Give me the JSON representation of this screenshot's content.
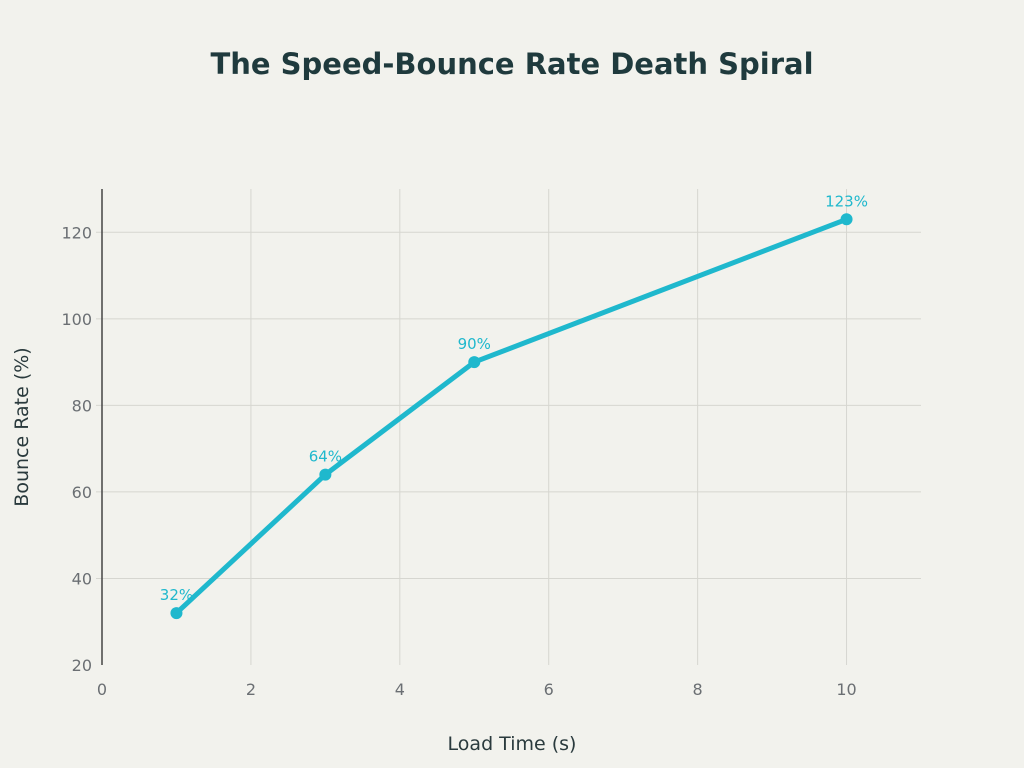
{
  "chart_data": {
    "type": "line",
    "title": "The Speed-Bounce Rate Death Spiral",
    "xlabel": "Load Time (s)",
    "ylabel": "Bounce Rate (%)",
    "xlim": [
      0,
      11
    ],
    "ylim": [
      20,
      130
    ],
    "xticks": [
      0,
      2,
      4,
      6,
      8,
      10
    ],
    "yticks": [
      20,
      40,
      60,
      80,
      100,
      120
    ],
    "grid": true,
    "series": [
      {
        "x": [
          1,
          3,
          5,
          10
        ],
        "y": [
          32,
          64,
          90,
          123
        ],
        "labels": [
          "32%",
          "64%",
          "90%",
          "123%"
        ],
        "color": "#1fb8cd"
      }
    ]
  }
}
